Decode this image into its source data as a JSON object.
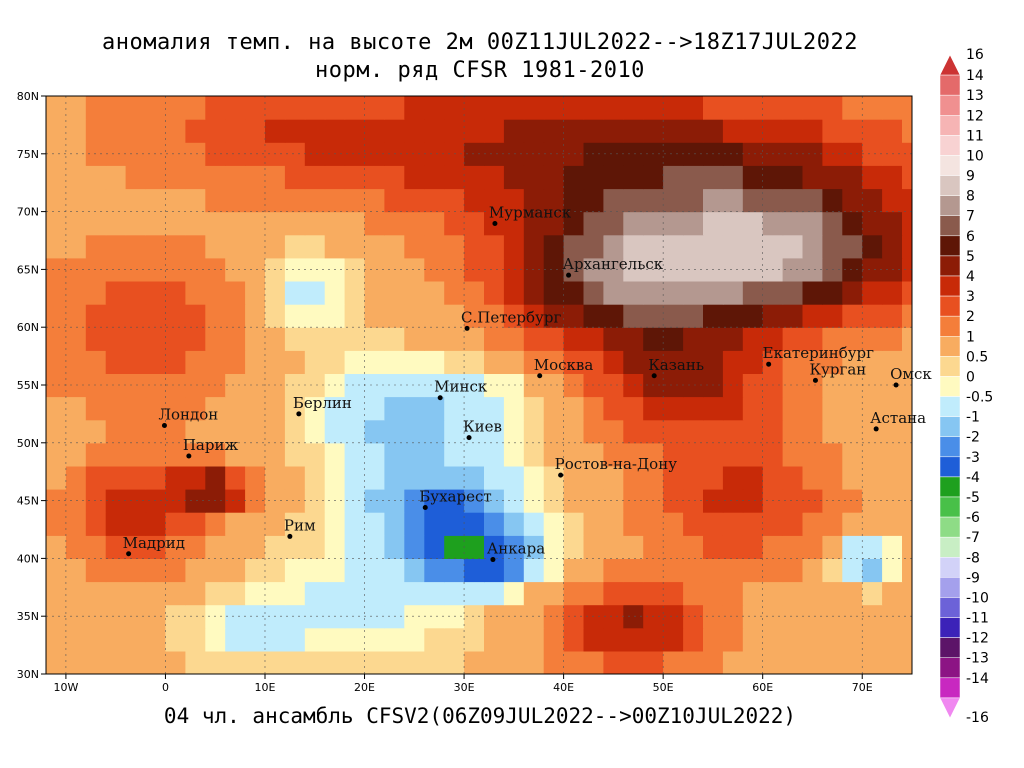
{
  "title": {
    "line1": "аномалия темп. на высоте 2м 00Z11JUL2022-->18Z17JUL2022",
    "line2": "норм. ряд CFSR 1981-2010"
  },
  "footer": "04 чл. ансамбль CFSV2(06Z09JUL2022-->00Z10JUL2022)",
  "map_data": {
    "lon_range": [
      -12,
      75
    ],
    "lat_range": [
      30,
      80
    ],
    "lon_ticks": [
      {
        "lon": -10,
        "label": "10W"
      },
      {
        "lon": 0,
        "label": "0"
      },
      {
        "lon": 10,
        "label": "10E"
      },
      {
        "lon": 20,
        "label": "20E"
      },
      {
        "lon": 30,
        "label": "30E"
      },
      {
        "lon": 40,
        "label": "40E"
      },
      {
        "lon": 50,
        "label": "50E"
      },
      {
        "lon": 60,
        "label": "60E"
      },
      {
        "lon": 70,
        "label": "70E"
      }
    ],
    "lat_ticks": [
      {
        "lat": 80,
        "label": "80N"
      },
      {
        "lat": 75,
        "label": "75N"
      },
      {
        "lat": 70,
        "label": "70N"
      },
      {
        "lat": 65,
        "label": "65N"
      },
      {
        "lat": 60,
        "label": "60N"
      },
      {
        "lat": 55,
        "label": "55N"
      },
      {
        "lat": 50,
        "label": "50N"
      },
      {
        "lat": 45,
        "label": "45N"
      },
      {
        "lat": 40,
        "label": "40N"
      },
      {
        "lat": 35,
        "label": "35N"
      },
      {
        "lat": 30,
        "label": "30N"
      }
    ],
    "cities": [
      {
        "name": "Мурманск",
        "lon": 33.1,
        "lat": 68.97
      },
      {
        "name": "Архангельск",
        "lon": 40.5,
        "lat": 64.5
      },
      {
        "name": "С.Петербург",
        "lon": 30.3,
        "lat": 59.9
      },
      {
        "name": "Москва",
        "lon": 37.6,
        "lat": 55.8
      },
      {
        "name": "Казань",
        "lon": 49.1,
        "lat": 55.8
      },
      {
        "name": "Екатеринбург",
        "lon": 60.6,
        "lat": 56.8
      },
      {
        "name": "Курган",
        "lon": 65.3,
        "lat": 55.4
      },
      {
        "name": "Омск",
        "lon": 73.4,
        "lat": 55.0
      },
      {
        "name": "Астана",
        "lon": 71.4,
        "lat": 51.2
      },
      {
        "name": "Минск",
        "lon": 27.6,
        "lat": 53.9
      },
      {
        "name": "Берлин",
        "lon": 13.4,
        "lat": 52.5
      },
      {
        "name": "Лондон",
        "lon": -0.1,
        "lat": 51.5
      },
      {
        "name": "Париж",
        "lon": 2.35,
        "lat": 48.86
      },
      {
        "name": "Киев",
        "lon": 30.5,
        "lat": 50.45
      },
      {
        "name": "Ростов-на-Дону",
        "lon": 39.7,
        "lat": 47.2
      },
      {
        "name": "Бухарест",
        "lon": 26.1,
        "lat": 44.4
      },
      {
        "name": "Рим",
        "lon": 12.5,
        "lat": 41.9
      },
      {
        "name": "Мадрид",
        "lon": -3.7,
        "lat": 40.4
      },
      {
        "name": "Анкара",
        "lon": 32.9,
        "lat": 39.9
      }
    ]
  },
  "colorbar": {
    "levels": [
      {
        "label": "16",
        "color": "#cc3333"
      },
      {
        "label": "14",
        "color": "#e46a6a"
      },
      {
        "label": "13",
        "color": "#f09090"
      },
      {
        "label": "12",
        "color": "#f6b4b4"
      },
      {
        "label": "11",
        "color": "#f8d2d2"
      },
      {
        "label": "10",
        "color": "#f4e4e0"
      },
      {
        "label": "9",
        "color": "#d9c6c0"
      },
      {
        "label": "8",
        "color": "#b49890"
      },
      {
        "label": "7",
        "color": "#8a5a4c"
      },
      {
        "label": "6",
        "color": "#5e1606"
      },
      {
        "label": "5",
        "color": "#8c1c06"
      },
      {
        "label": "4",
        "color": "#c82a08"
      },
      {
        "label": "3",
        "color": "#e85020"
      },
      {
        "label": "2",
        "color": "#f47e3a"
      },
      {
        "label": "1",
        "color": "#f8ac60"
      },
      {
        "label": "0.5",
        "color": "#fcd890"
      },
      {
        "label": "0",
        "color": "#fffac0"
      },
      {
        "label": "-0.5",
        "color": "#c0ecfc"
      },
      {
        "label": "-1",
        "color": "#86c6f2"
      },
      {
        "label": "-2",
        "color": "#4a8ee8"
      },
      {
        "label": "-3",
        "color": "#1e5ed8"
      },
      {
        "label": "-4",
        "color": "#1ea01e"
      },
      {
        "label": "-5",
        "color": "#48c048"
      },
      {
        "label": "-6",
        "color": "#8edc86"
      },
      {
        "label": "-7",
        "color": "#c8eec4"
      },
      {
        "label": "-8",
        "color": "#d2d2f8"
      },
      {
        "label": "-9",
        "color": "#a4a0ec"
      },
      {
        "label": "-10",
        "color": "#6c62d8"
      },
      {
        "label": "-11",
        "color": "#3c22b8"
      },
      {
        "label": "-12",
        "color": "#5c1468"
      },
      {
        "label": "-13",
        "color": "#8c1484"
      },
      {
        "label": "-14",
        "color": "#c828c0"
      },
      {
        "label": "-16",
        "color": "#f088f0"
      }
    ]
  },
  "anomaly_centers": [
    {
      "lon": 62,
      "lat": 66,
      "value": 6.5,
      "rx": 14,
      "ry": 6
    },
    {
      "lon": 45,
      "lat": 64,
      "value": 5.5,
      "rx": 12,
      "ry": 6
    },
    {
      "lon": 50,
      "lat": 74,
      "value": 4.5,
      "rx": 26,
      "ry": 7
    },
    {
      "lon": 15,
      "lat": 77,
      "value": 2.5,
      "rx": 22,
      "ry": 5
    },
    {
      "lon": 52,
      "lat": 55,
      "value": 3.5,
      "rx": 10,
      "ry": 5
    },
    {
      "lon": 58,
      "lat": 45,
      "value": 3.0,
      "rx": 10,
      "ry": 6
    },
    {
      "lon": -3,
      "lat": 44,
      "value": 3.5,
      "rx": 7,
      "ry": 5
    },
    {
      "lon": 5,
      "lat": 46,
      "value": 4.0,
      "rx": 4,
      "ry": 2
    },
    {
      "lon": 47,
      "lat": 34,
      "value": 4.0,
      "rx": 8,
      "ry": 4
    },
    {
      "lon": -2,
      "lat": 60,
      "value": 2.5,
      "rx": 12,
      "ry": 7
    },
    {
      "lon": 28,
      "lat": 44,
      "value": -4.2,
      "rx": 8,
      "ry": 4
    },
    {
      "lon": 32,
      "lat": 40,
      "value": -4.2,
      "rx": 6,
      "ry": 2.5
    },
    {
      "lon": 24,
      "lat": 52,
      "value": -2.5,
      "rx": 9,
      "ry": 5
    },
    {
      "lon": 14,
      "lat": 63,
      "value": -1.8,
      "rx": 5,
      "ry": 5
    },
    {
      "lon": 20,
      "lat": 36,
      "value": -1.5,
      "rx": 10,
      "ry": 5
    },
    {
      "lon": 8,
      "lat": 34,
      "value": -1.3,
      "rx": 6,
      "ry": 3
    },
    {
      "lon": 34,
      "lat": 54,
      "value": -1.0,
      "rx": 6,
      "ry": 3
    },
    {
      "lon": 70,
      "lat": 40,
      "value": -3.5,
      "rx": 3,
      "ry": 2
    },
    {
      "lon": 72,
      "lat": 48,
      "value": -0.5,
      "rx": 4,
      "ry": 2
    }
  ]
}
